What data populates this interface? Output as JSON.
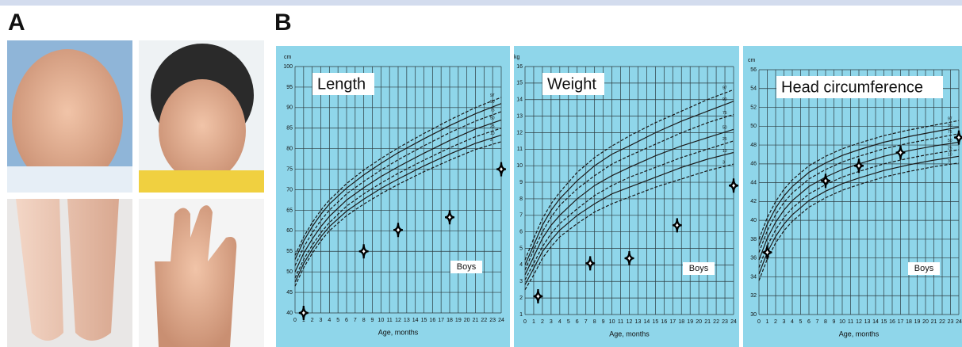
{
  "figure": {
    "panel_a": "A",
    "panel_b": "B"
  },
  "chart_data": [
    {
      "type": "line",
      "title": "Length",
      "y_unit": "cm",
      "x_label": "Age, months",
      "annotation": "Boys",
      "xlim": [
        0,
        24
      ],
      "xticks": [
        0,
        1,
        2,
        3,
        4,
        5,
        6,
        7,
        8,
        9,
        10,
        11,
        12,
        13,
        14,
        15,
        16,
        17,
        18,
        19,
        20,
        21,
        22,
        23,
        24
      ],
      "ylim": [
        40,
        100
      ],
      "yticks": [
        40,
        45,
        50,
        55,
        60,
        65,
        70,
        75,
        80,
        85,
        90,
        95,
        100
      ],
      "grid": true,
      "x": [
        0,
        1,
        2,
        3,
        4,
        6,
        8,
        10,
        12,
        15,
        18,
        21,
        24
      ],
      "series": [
        {
          "name": "97",
          "color": "#1a1a1a",
          "dash": true,
          "values": [
            54,
            58.5,
            62,
            65,
            67.5,
            71.5,
            74.8,
            77.6,
            80.2,
            83.7,
            87,
            90,
            92.5
          ]
        },
        {
          "name": "90",
          "color": "#1a1a1a",
          "dash": false,
          "values": [
            53,
            57.5,
            61,
            64,
            66.5,
            70.4,
            73.6,
            76.4,
            79,
            82.4,
            85.6,
            88.5,
            91
          ]
        },
        {
          "name": "75",
          "color": "#1a1a1a",
          "dash": true,
          "values": [
            51.5,
            56,
            59.5,
            62.5,
            65,
            69,
            72,
            74.8,
            77.3,
            80.7,
            83.9,
            86.7,
            89
          ]
        },
        {
          "name": "50",
          "color": "#1a1a1a",
          "dash": false,
          "values": [
            50,
            54.5,
            58,
            61,
            63.5,
            67.5,
            70.5,
            73.2,
            75.6,
            78.9,
            82,
            84.8,
            87
          ]
        },
        {
          "name": "25",
          "color": "#1a1a1a",
          "dash": true,
          "values": [
            48.5,
            53,
            56.5,
            59.5,
            62,
            66,
            69,
            71.6,
            74,
            77.2,
            80.2,
            82.9,
            85
          ]
        },
        {
          "name": "10",
          "color": "#1a1a1a",
          "dash": false,
          "values": [
            47.5,
            52,
            55.5,
            58.5,
            61,
            64.8,
            67.7,
            70.3,
            72.6,
            75.8,
            78.7,
            81.3,
            83.3
          ]
        },
        {
          "name": "3",
          "color": "#1a1a1a",
          "dash": true,
          "values": [
            46.5,
            51,
            54.5,
            57.5,
            60,
            63.7,
            66.5,
            69,
            71.3,
            74.4,
            77.2,
            79.8,
            81.7
          ]
        }
      ],
      "points": {
        "color": "#000000",
        "x": [
          1,
          8,
          12,
          18,
          24
        ],
        "y": [
          40,
          55,
          60.2,
          63.3,
          75
        ]
      }
    },
    {
      "type": "line",
      "title": "Weight",
      "y_unit": "kg",
      "x_label": "Age, months",
      "annotation": "Boys",
      "xlim": [
        0,
        24
      ],
      "xticks": [
        0,
        1,
        2,
        3,
        4,
        5,
        6,
        7,
        8,
        9,
        10,
        11,
        12,
        13,
        14,
        15,
        16,
        17,
        18,
        19,
        20,
        21,
        22,
        23,
        24
      ],
      "ylim": [
        1,
        16
      ],
      "yticks": [
        1,
        2,
        3,
        4,
        5,
        6,
        7,
        8,
        9,
        10,
        11,
        12,
        13,
        14,
        15,
        16
      ],
      "grid": true,
      "x": [
        0,
        1,
        2,
        3,
        4,
        6,
        8,
        10,
        12,
        15,
        18,
        21,
        24
      ],
      "series": [
        {
          "name": "97",
          "color": "#1a1a1a",
          "dash": true,
          "values": [
            4.3,
            5.6,
            6.8,
            7.7,
            8.4,
            9.6,
            10.5,
            11.2,
            11.8,
            12.6,
            13.3,
            14,
            14.6
          ]
        },
        {
          "name": "90",
          "color": "#1a1a1a",
          "dash": false,
          "values": [
            4,
            5.2,
            6.4,
            7.3,
            8,
            9.1,
            10,
            10.7,
            11.2,
            12,
            12.7,
            13.3,
            13.9
          ]
        },
        {
          "name": "75",
          "color": "#1a1a1a",
          "dash": true,
          "values": [
            3.7,
            4.9,
            6,
            6.9,
            7.6,
            8.6,
            9.4,
            10.1,
            10.6,
            11.3,
            12,
            12.6,
            13.1
          ]
        },
        {
          "name": "50",
          "color": "#1a1a1a",
          "dash": false,
          "values": [
            3.4,
            4.5,
            5.6,
            6.4,
            7,
            8,
            8.8,
            9.4,
            9.9,
            10.6,
            11.2,
            11.7,
            12.2
          ]
        },
        {
          "name": "25",
          "color": "#1a1a1a",
          "dash": true,
          "values": [
            3.1,
            4.1,
            5.1,
            5.9,
            6.5,
            7.4,
            8.2,
            8.8,
            9.3,
            9.9,
            10.5,
            11,
            11.5
          ]
        },
        {
          "name": "10",
          "color": "#1a1a1a",
          "dash": false,
          "values": [
            2.8,
            3.8,
            4.8,
            5.5,
            6.1,
            7,
            7.7,
            8.3,
            8.7,
            9.3,
            9.9,
            10.4,
            10.8
          ]
        },
        {
          "name": "3",
          "color": "#1a1a1a",
          "dash": true,
          "values": [
            2.5,
            3.4,
            4.4,
            5.1,
            5.7,
            6.5,
            7.2,
            7.7,
            8.1,
            8.7,
            9.2,
            9.7,
            10.1
          ]
        }
      ],
      "points": {
        "color": "#000000",
        "x": [
          1.5,
          7.5,
          12,
          17.5,
          24
        ],
        "y": [
          2.1,
          4.1,
          4.4,
          6.4,
          8.8
        ]
      }
    },
    {
      "type": "line",
      "title": "Head circumference",
      "y_unit": "cm",
      "x_label": "Age, months",
      "annotation": "Boys",
      "xlim": [
        0,
        24
      ],
      "xticks": [
        0,
        1,
        2,
        3,
        4,
        5,
        6,
        7,
        8,
        9,
        10,
        11,
        12,
        13,
        14,
        15,
        16,
        17,
        18,
        19,
        20,
        21,
        22,
        23,
        24
      ],
      "ylim": [
        30,
        56
      ],
      "yticks": [
        30,
        32,
        34,
        36,
        38,
        40,
        42,
        44,
        46,
        48,
        50,
        52,
        54,
        56
      ],
      "grid": true,
      "x": [
        0,
        1,
        2,
        3,
        4,
        6,
        8,
        10,
        12,
        15,
        18,
        21,
        24
      ],
      "series": [
        {
          "name": "97",
          "color": "#1a1a1a",
          "dash": true,
          "values": [
            38,
            40.3,
            42,
            43.3,
            44.3,
            45.8,
            46.8,
            47.6,
            48.2,
            49,
            49.6,
            50.1,
            50.6
          ]
        },
        {
          "name": "90",
          "color": "#1a1a1a",
          "dash": false,
          "values": [
            37.3,
            39.6,
            41.3,
            42.6,
            43.6,
            45.1,
            46.1,
            46.9,
            47.5,
            48.3,
            48.9,
            49.4,
            49.9
          ]
        },
        {
          "name": "75",
          "color": "#1a1a1a",
          "dash": true,
          "values": [
            36.6,
            38.9,
            40.6,
            41.9,
            42.9,
            44.4,
            45.4,
            46.2,
            46.8,
            47.6,
            48.2,
            48.7,
            49.2
          ]
        },
        {
          "name": "50",
          "color": "#1a1a1a",
          "dash": false,
          "values": [
            35.8,
            38.1,
            39.8,
            41.1,
            42.1,
            43.6,
            44.6,
            45.4,
            46,
            46.8,
            47.4,
            47.9,
            48.3
          ]
        },
        {
          "name": "25",
          "color": "#1a1a1a",
          "dash": true,
          "values": [
            35,
            37.3,
            39,
            40.3,
            41.3,
            42.8,
            43.8,
            44.6,
            45.2,
            46,
            46.6,
            47.1,
            47.5
          ]
        },
        {
          "name": "10",
          "color": "#1a1a1a",
          "dash": false,
          "values": [
            34.3,
            36.6,
            38.3,
            39.6,
            40.6,
            42.1,
            43.1,
            43.9,
            44.5,
            45.3,
            45.9,
            46.4,
            46.8
          ]
        },
        {
          "name": "3",
          "color": "#1a1a1a",
          "dash": true,
          "values": [
            33.6,
            35.9,
            37.6,
            38.9,
            39.9,
            41.4,
            42.4,
            43.2,
            43.8,
            44.6,
            45.2,
            45.7,
            46.1
          ]
        }
      ],
      "points": {
        "color": "#000000",
        "x": [
          1,
          8,
          12,
          17,
          24
        ],
        "y": [
          36.6,
          44.2,
          45.8,
          47.2,
          48.8
        ]
      }
    }
  ]
}
